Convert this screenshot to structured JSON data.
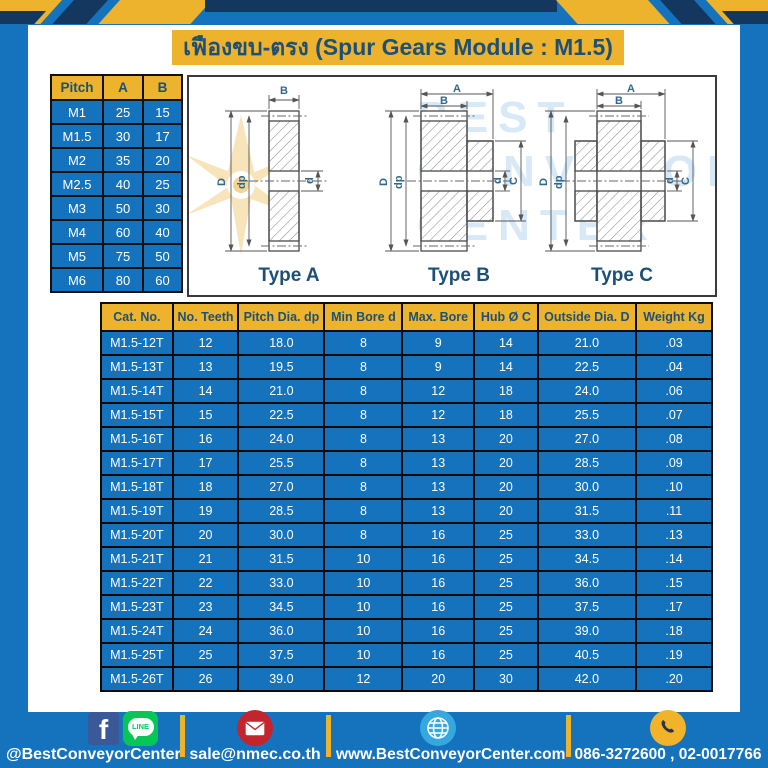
{
  "title": "เฟืองขบ-ตรง (Spur Gears Module : M1.5)",
  "watermark": {
    "line1": "BEST",
    "line2": "CONVEYOR",
    "line3": "CENTER"
  },
  "pitch_table": {
    "headers": [
      "Pitch",
      "A",
      "B"
    ],
    "rows": [
      [
        "M1",
        "25",
        "15"
      ],
      [
        "M1.5",
        "30",
        "17"
      ],
      [
        "M2",
        "35",
        "20"
      ],
      [
        "M2.5",
        "40",
        "25"
      ],
      [
        "M3",
        "50",
        "30"
      ],
      [
        "M4",
        "60",
        "40"
      ],
      [
        "M5",
        "75",
        "50"
      ],
      [
        "M6",
        "80",
        "60"
      ]
    ]
  },
  "drawings": {
    "types": [
      {
        "label": "Type A",
        "top_dims": [
          "B"
        ],
        "left_dims": [
          "D",
          "dp"
        ],
        "right_dims": [
          "d"
        ]
      },
      {
        "label": "Type B",
        "top_dims": [
          "A",
          "B"
        ],
        "left_dims": [
          "D",
          "dp"
        ],
        "right_dims": [
          "d",
          "C"
        ]
      },
      {
        "label": "Type C",
        "top_dims": [
          "A",
          "B"
        ],
        "left_dims": [
          "D",
          "dp"
        ],
        "right_dims": [
          "d",
          "C"
        ]
      }
    ]
  },
  "spec_table": {
    "headers": [
      "Cat. No.",
      "No. Teeth",
      "Pitch Dia. dp",
      "Min Bore d",
      "Max. Bore",
      "Hub Ø C",
      "Outside Dia. D",
      "Weight Kg"
    ],
    "rows": [
      [
        "M1.5-12T",
        "12",
        "18.0",
        "8",
        "9",
        "14",
        "21.0",
        ".03"
      ],
      [
        "M1.5-13T",
        "13",
        "19.5",
        "8",
        "9",
        "14",
        "22.5",
        ".04"
      ],
      [
        "M1.5-14T",
        "14",
        "21.0",
        "8",
        "12",
        "18",
        "24.0",
        ".06"
      ],
      [
        "M1.5-15T",
        "15",
        "22.5",
        "8",
        "12",
        "18",
        "25.5",
        ".07"
      ],
      [
        "M1.5-16T",
        "16",
        "24.0",
        "8",
        "13",
        "20",
        "27.0",
        ".08"
      ],
      [
        "M1.5-17T",
        "17",
        "25.5",
        "8",
        "13",
        "20",
        "28.5",
        ".09"
      ],
      [
        "M1.5-18T",
        "18",
        "27.0",
        "8",
        "13",
        "20",
        "30.0",
        ".10"
      ],
      [
        "M1.5-19T",
        "19",
        "28.5",
        "8",
        "13",
        "20",
        "31.5",
        ".11"
      ],
      [
        "M1.5-20T",
        "20",
        "30.0",
        "8",
        "16",
        "25",
        "33.0",
        ".13"
      ],
      [
        "M1.5-21T",
        "21",
        "31.5",
        "10",
        "16",
        "25",
        "34.5",
        ".14"
      ],
      [
        "M1.5-22T",
        "22",
        "33.0",
        "10",
        "16",
        "25",
        "36.0",
        ".15"
      ],
      [
        "M1.5-23T",
        "23",
        "34.5",
        "10",
        "16",
        "25",
        "37.5",
        ".17"
      ],
      [
        "M1.5-24T",
        "24",
        "36.0",
        "10",
        "16",
        "25",
        "39.0",
        ".18"
      ],
      [
        "M1.5-25T",
        "25",
        "37.5",
        "10",
        "16",
        "25",
        "40.5",
        ".19"
      ],
      [
        "M1.5-26T",
        "26",
        "39.0",
        "12",
        "20",
        "30",
        "42.0",
        ".20"
      ]
    ]
  },
  "footer": {
    "facebook_letter": "f",
    "line_label": "LINE",
    "facebook_handle": "@BestConveyorCenter",
    "email": "sale@nmec.co.th",
    "website": "www.BestConveyorCenter.com",
    "phones": "086-3272600 , 02-0017766"
  },
  "colors": {
    "background_blue": "#1573BE",
    "accent_yellow": "#EDB32C",
    "navy_text": "#1D5077",
    "stripe_navy": "#14375F",
    "line_green": "#06C755",
    "facebook_blue": "#3B5998",
    "email_red": "#C4242B",
    "globe_blue": "#35A8E0"
  }
}
